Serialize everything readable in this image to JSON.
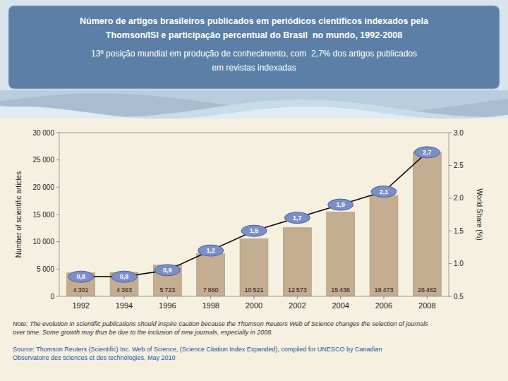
{
  "chart_data": {
    "type": "bar",
    "title": [
      "Número de artigos brasileiros publicados em periódicos científicos indexados pela",
      "Thomson/ISI e participação percentual do Brasil  no mundo, 1992-2008"
    ],
    "subtitle": [
      "13ª posição mundial em produção de conhecimento, com  2,7% dos artigos publicados",
      "em revistas indexadas"
    ],
    "annotations": [
      "Note: The evolution in scientific publications should inspire caution because the Thomson Reuters Web of Science changes the selection of journals\nover time. Some growth may thus be due to the inclusion of new journals, especially in 2008.",
      "Source: Thomson Reuters (Scientific) Inc. Web of Science, (Science Citation Index Expanded), compiled for UNESCO by Canadian\nObservatoire des sciences et des technologies, May 2010"
    ],
    "ylabel": "Number of scientific articles",
    "y2label": "World Share (%)",
    "categories": [
      "1992",
      "1994",
      "1996",
      "1998",
      "2000",
      "2002",
      "2004",
      "2006",
      "2008"
    ],
    "series": [
      {
        "type": "bar",
        "color": "#C4AD90",
        "values": [
          4301,
          4363,
          5723,
          7860,
          10521,
          12573,
          15436,
          18473,
          26482
        ],
        "value_labels": [
          "4 301",
          "4 363",
          "5 723",
          "7 860",
          "10 521",
          "12 573",
          "15 436",
          "18 473",
          "26 482"
        ],
        "data_labels": true
      },
      {
        "type": "line",
        "axis": "y2",
        "color": "#111111",
        "marker": "ellipse",
        "values": [
          0.8,
          0.8,
          0.9,
          1.2,
          1.5,
          1.7,
          1.9,
          2.1,
          2.7
        ],
        "value_labels": [
          "0,8",
          "0,8",
          "0,9",
          "1,2",
          "1,5",
          "1,7",
          "1,9",
          "2,1",
          "2,7"
        ],
        "data_labels": true
      }
    ],
    "ylim": [
      0,
      30000
    ],
    "yticks": [
      0,
      {
        "value": 5000,
        "label": "5 000"
      },
      {
        "value": 10000,
        "label": "10 000"
      },
      {
        "value": 15000,
        "label": "15 000"
      },
      {
        "value": 20000,
        "label": "20 000"
      },
      {
        "value": 25000,
        "label": "25 000"
      },
      {
        "value": 30000,
        "label": "30 000"
      }
    ],
    "y2lim": [
      0.5,
      3.0
    ],
    "y2ticks": [
      0.5,
      {
        "value": 1.0,
        "label": "1.0"
      },
      1.5,
      {
        "value": 2.0,
        "label": "2.0"
      },
      2.5,
      {
        "value": 3.0,
        "label": "3.0"
      }
    ],
    "grid": false
  }
}
